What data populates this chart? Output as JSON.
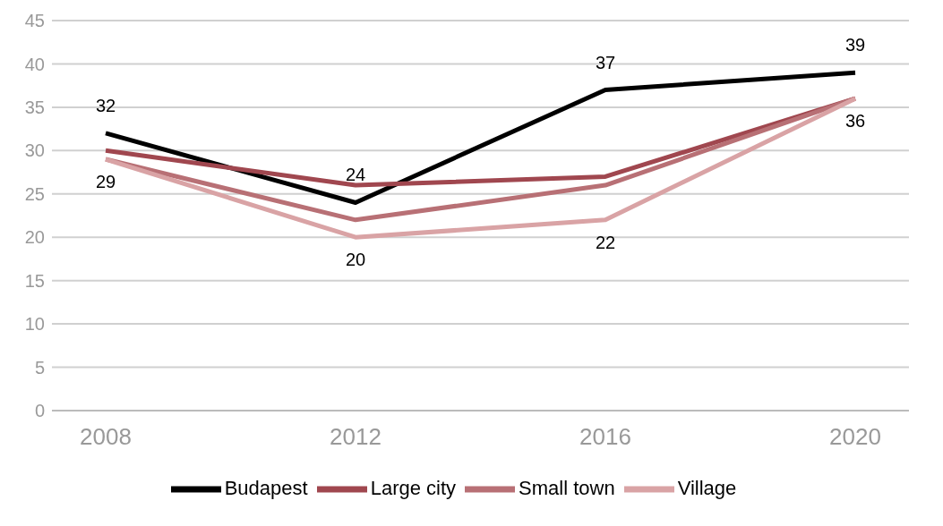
{
  "chart_data": {
    "type": "line",
    "categories": [
      "2008",
      "2012",
      "2016",
      "2020"
    ],
    "series": [
      {
        "name": "Budapest",
        "color": "#000000",
        "values": [
          32,
          24,
          37,
          39
        ],
        "value_labels": [
          "32",
          "24",
          "37",
          "39"
        ]
      },
      {
        "name": "Large city",
        "color": "#a0474f",
        "values": [
          30,
          26,
          27,
          36
        ]
      },
      {
        "name": "Small town",
        "color": "#b87075",
        "values": [
          29,
          22,
          26,
          36
        ]
      },
      {
        "name": "Village",
        "color": "#d9a3a5",
        "values": [
          29,
          20,
          22,
          36
        ],
        "value_labels": [
          "29",
          "20",
          "22",
          "36"
        ]
      }
    ],
    "ylim": [
      0,
      45
    ],
    "yticks": [
      0,
      5,
      10,
      15,
      20,
      25,
      30,
      35,
      40,
      45
    ],
    "grid": "y",
    "legend": "bottom",
    "marker": "none",
    "line_style": "solid"
  }
}
